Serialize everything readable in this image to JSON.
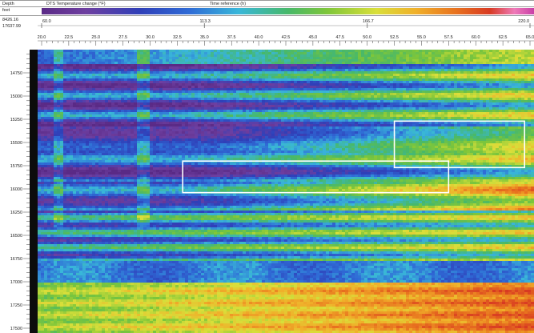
{
  "header": {
    "row1_label": "Depth",
    "row2_label": "feet",
    "depth_range_top": "8426.16",
    "depth_range_bottom": "17637.99",
    "scale_title": "DTS Temperature change (°F)",
    "time_title": "Time reference (h)"
  },
  "colors": {
    "scale_stops": [
      "#5a2a86",
      "#6e3fa0",
      "#2f3fb8",
      "#2f6bd6",
      "#39b7d9",
      "#47b86a",
      "#7ec63a",
      "#d9df3a",
      "#f0b02a",
      "#e8731f",
      "#d83a22",
      "#ee7ab8",
      "#c93fa8"
    ]
  },
  "chart_data": {
    "type": "heatmap",
    "title": "",
    "xlabel": "Time reference (h)",
    "ylabel": "Depth (feet)",
    "colorbar_label": "DTS Temperature change (°F)",
    "x_ticks": [
      "20.0",
      "22.5",
      "25.0",
      "27.5",
      "30.0",
      "32.5",
      "35.0",
      "37.5",
      "40.0",
      "42.5",
      "45.0",
      "47.5",
      "50.0",
      "52.5",
      "55.0",
      "57.5",
      "60.0",
      "62.5",
      "65.0"
    ],
    "xlim": [
      20.0,
      65.0
    ],
    "time_ticks": [
      "60.0",
      "113.3",
      "166.7",
      "220.0"
    ],
    "time_range": [
      60.0,
      220.0
    ],
    "y_ticks": [
      14750,
      15000,
      15250,
      15500,
      15750,
      16000,
      16250,
      16500,
      16750,
      17000,
      17250,
      17500
    ],
    "ylim": [
      14500,
      17500
    ],
    "y_inverted": true,
    "annotations": [
      {
        "type": "rectangle",
        "color": "#ffffff",
        "x_range": [
          52.5,
          64.5
        ],
        "y_range": [
          15270,
          15770
        ]
      },
      {
        "type": "rectangle",
        "color": "#ffffff",
        "x_range": [
          33.0,
          57.5
        ],
        "y_range": [
          15700,
          16040
        ]
      }
    ]
  }
}
